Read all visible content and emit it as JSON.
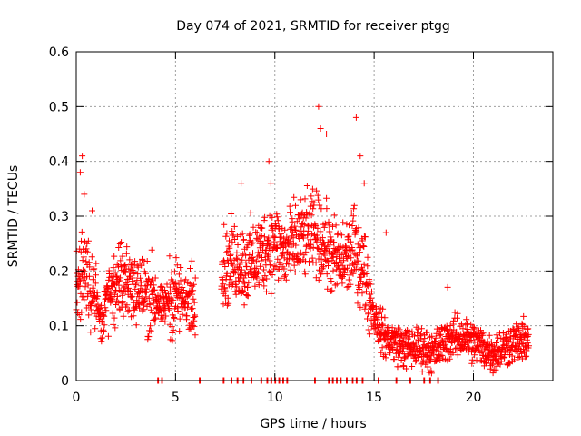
{
  "chart_data": {
    "type": "scatter",
    "title": "Day 074 of 2021, SRMTID for receiver ptgg",
    "xlabel": "GPS time / hours",
    "ylabel": "SRMTID / TECUs",
    "xlim": [
      0,
      24
    ],
    "ylim": [
      0,
      0.6
    ],
    "x_ticks": [
      0,
      5,
      10,
      15,
      20
    ],
    "y_ticks": [
      0,
      0.1,
      0.2,
      0.3,
      0.4,
      0.5,
      0.6
    ],
    "x_tick_labels": [
      "0",
      "5",
      "10",
      "15",
      "20"
    ],
    "y_tick_labels": [
      "0",
      "0.1",
      "0.2",
      "0.3",
      "0.4",
      "0.5",
      "0.6"
    ],
    "grid": true,
    "marker": "+",
    "color": "#ff0000",
    "series_shape": [
      [
        0.0,
        0.18
      ],
      [
        0.5,
        0.21
      ],
      [
        1.0,
        0.15
      ],
      [
        1.3,
        0.1
      ],
      [
        1.6,
        0.16
      ],
      [
        2.0,
        0.17
      ],
      [
        2.5,
        0.18
      ],
      [
        3.0,
        0.17
      ],
      [
        3.5,
        0.16
      ],
      [
        4.0,
        0.15
      ],
      [
        4.3,
        0.13
      ],
      [
        4.7,
        0.15
      ],
      [
        5.0,
        0.16
      ],
      [
        5.5,
        0.14
      ],
      [
        6.0,
        0.17
      ],
      [
        7.3,
        0.2
      ],
      [
        7.7,
        0.21
      ],
      [
        8.0,
        0.22
      ],
      [
        8.5,
        0.21
      ],
      [
        9.0,
        0.22
      ],
      [
        9.5,
        0.24
      ],
      [
        10.0,
        0.25
      ],
      [
        10.5,
        0.23
      ],
      [
        11.0,
        0.25
      ],
      [
        11.5,
        0.26
      ],
      [
        12.0,
        0.27
      ],
      [
        12.5,
        0.25
      ],
      [
        13.0,
        0.22
      ],
      [
        13.5,
        0.22
      ],
      [
        14.0,
        0.24
      ],
      [
        14.5,
        0.2
      ],
      [
        15.0,
        0.12
      ],
      [
        15.5,
        0.08
      ],
      [
        16.0,
        0.07
      ],
      [
        16.5,
        0.06
      ],
      [
        17.0,
        0.06
      ],
      [
        17.5,
        0.06
      ],
      [
        18.0,
        0.05
      ],
      [
        18.5,
        0.07
      ],
      [
        19.0,
        0.08
      ],
      [
        19.5,
        0.08
      ],
      [
        20.0,
        0.07
      ],
      [
        20.5,
        0.06
      ],
      [
        21.0,
        0.05
      ],
      [
        21.5,
        0.06
      ],
      [
        22.0,
        0.07
      ],
      [
        22.5,
        0.07
      ],
      [
        22.8,
        0.08
      ]
    ],
    "peaks": [
      [
        0.3,
        0.41
      ],
      [
        0.2,
        0.38
      ],
      [
        0.4,
        0.34
      ],
      [
        0.8,
        0.31
      ],
      [
        8.3,
        0.36
      ],
      [
        9.7,
        0.4
      ],
      [
        9.8,
        0.36
      ],
      [
        11.3,
        0.33
      ],
      [
        12.2,
        0.5
      ],
      [
        12.3,
        0.46
      ],
      [
        12.6,
        0.45
      ],
      [
        14.1,
        0.48
      ],
      [
        14.3,
        0.41
      ],
      [
        14.5,
        0.36
      ],
      [
        15.6,
        0.27
      ],
      [
        18.7,
        0.17
      ]
    ],
    "zero_markers": [
      4.1,
      4.3,
      6.2,
      7.4,
      7.8,
      8.1,
      8.4,
      8.8,
      9.3,
      9.6,
      9.8,
      10.0,
      10.2,
      10.4,
      10.6,
      12.0,
      12.7,
      12.9,
      13.1,
      13.3,
      13.6,
      13.9,
      14.1,
      14.4,
      15.2,
      16.1,
      16.8,
      17.5,
      17.8,
      18.2
    ]
  }
}
